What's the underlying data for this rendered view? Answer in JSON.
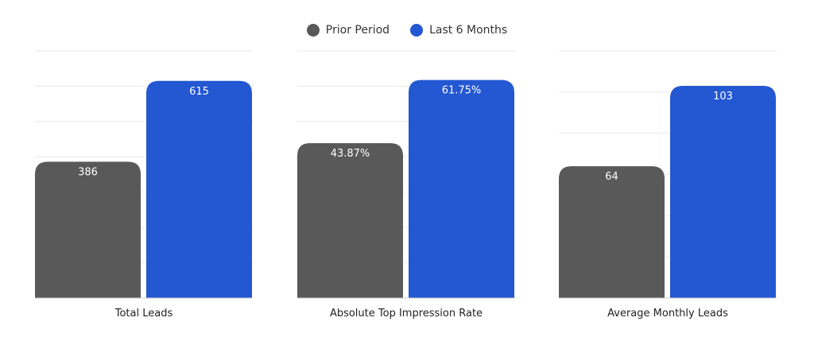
{
  "colors": {
    "prior": "#595959",
    "last6": "#2457d2",
    "grid": "#e8e8e8"
  },
  "legend": [
    {
      "label": "Prior Period",
      "color": "#595959"
    },
    {
      "label": "Last 6 Months",
      "color": "#2457d2"
    }
  ],
  "chart_data": [
    {
      "type": "bar",
      "category": "Total Leads",
      "ylim": [
        0,
        700
      ],
      "ystep": 100,
      "grid": true,
      "series": [
        {
          "name": "Prior Period",
          "value": 386,
          "label": "386"
        },
        {
          "name": "Last 6 Months",
          "value": 615,
          "label": "615"
        }
      ]
    },
    {
      "type": "bar",
      "category": "Absolute Top Impression Rate",
      "ylim": [
        0,
        70
      ],
      "ystep": 10,
      "grid": true,
      "series": [
        {
          "name": "Prior Period",
          "value": 43.87,
          "label": "43.87%"
        },
        {
          "name": "Last 6 Months",
          "value": 61.75,
          "label": "61.75%"
        }
      ]
    },
    {
      "type": "bar",
      "category": "Average Monthly Leads",
      "ylim": [
        0,
        120
      ],
      "ystep": 20,
      "grid": true,
      "series": [
        {
          "name": "Prior Period",
          "value": 64,
          "label": "64"
        },
        {
          "name": "Last 6 Months",
          "value": 103,
          "label": "103"
        }
      ]
    }
  ]
}
